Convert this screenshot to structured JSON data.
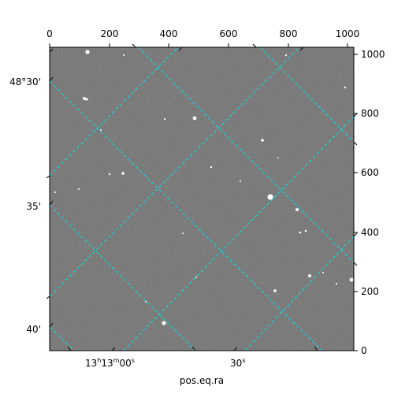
{
  "image": {
    "kind": "astronomical-image",
    "colormap": "grayscale",
    "background_color": "#6e6e6e"
  },
  "pixel_axes": {
    "top_ticks": [
      "0",
      "200",
      "400",
      "600",
      "800",
      "1000"
    ],
    "right_ticks": [
      "0",
      "200",
      "400",
      "600",
      "800",
      "1000"
    ]
  },
  "world_axes": {
    "dec_labels": [
      "48°30'",
      "35'",
      "40'"
    ],
    "ra_labels": [
      "13h13m00s",
      "30s"
    ],
    "ra_label_parts": [
      {
        "h": "13",
        "h_unit": "h",
        "m": "13",
        "m_unit": "m",
        "s": "00",
        "s_unit": "s"
      },
      {
        "s": "30",
        "s_unit": "s"
      }
    ],
    "xlabel": "pos.eq.ra"
  },
  "grid": {
    "color": "#00e5e5",
    "style": "dashed"
  }
}
